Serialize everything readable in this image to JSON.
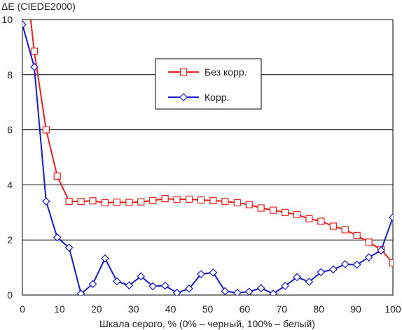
{
  "chart_data": {
    "type": "line",
    "title": "",
    "ylabel": "ΔE (CIEDE2000)",
    "xlabel": "Шкала серого, % (0% – черный, 100% – белый)",
    "xlim": [
      0,
      100
    ],
    "ylim": [
      0,
      10
    ],
    "xticks": [
      0,
      10,
      20,
      30,
      40,
      50,
      60,
      70,
      80,
      90,
      100
    ],
    "yticks": [
      0,
      2,
      4,
      6,
      8,
      10
    ],
    "grid": "horizontal",
    "legend_position": "upper-center",
    "series": [
      {
        "name": "Без корр.",
        "color": "#e8211c",
        "marker": "square",
        "points": [
          [
            1.9,
            10.4
          ],
          [
            3.2,
            8.85
          ],
          [
            6.4,
            6.0
          ],
          [
            9.4,
            4.32
          ],
          [
            12.6,
            3.4
          ],
          [
            15.8,
            3.4
          ],
          [
            19.0,
            3.42
          ],
          [
            22.3,
            3.35
          ],
          [
            25.5,
            3.37
          ],
          [
            28.8,
            3.36
          ],
          [
            32.0,
            3.38
          ],
          [
            35.2,
            3.43
          ],
          [
            38.5,
            3.5
          ],
          [
            41.7,
            3.47
          ],
          [
            45.0,
            3.48
          ],
          [
            48.2,
            3.45
          ],
          [
            51.5,
            3.43
          ],
          [
            54.7,
            3.4
          ],
          [
            58.0,
            3.35
          ],
          [
            61.2,
            3.28
          ],
          [
            64.4,
            3.16
          ],
          [
            67.7,
            3.08
          ],
          [
            70.9,
            3.0
          ],
          [
            74.1,
            2.92
          ],
          [
            77.4,
            2.77
          ],
          [
            80.6,
            2.68
          ],
          [
            83.9,
            2.5
          ],
          [
            87.1,
            2.37
          ],
          [
            90.3,
            2.16
          ],
          [
            93.5,
            1.92
          ],
          [
            96.8,
            1.65
          ],
          [
            100.0,
            1.17
          ]
        ]
      },
      {
        "name": "Корр.",
        "color": "#1a1acc",
        "marker": "diamond",
        "points": [
          [
            0.0,
            9.82
          ],
          [
            3.2,
            8.28
          ],
          [
            6.4,
            3.4
          ],
          [
            9.4,
            2.09
          ],
          [
            12.6,
            1.72
          ],
          [
            15.8,
            0.05
          ],
          [
            19.0,
            0.4
          ],
          [
            22.3,
            1.33
          ],
          [
            25.5,
            0.5
          ],
          [
            28.8,
            0.35
          ],
          [
            32.0,
            0.68
          ],
          [
            35.2,
            0.32
          ],
          [
            38.5,
            0.34
          ],
          [
            41.7,
            0.08
          ],
          [
            45.0,
            0.23
          ],
          [
            48.2,
            0.76
          ],
          [
            51.5,
            0.82
          ],
          [
            54.7,
            0.14
          ],
          [
            58.0,
            0.08
          ],
          [
            61.2,
            0.12
          ],
          [
            64.4,
            0.25
          ],
          [
            67.7,
            0.05
          ],
          [
            70.9,
            0.33
          ],
          [
            74.1,
            0.65
          ],
          [
            77.4,
            0.48
          ],
          [
            80.6,
            0.83
          ],
          [
            83.9,
            0.93
          ],
          [
            87.1,
            1.12
          ],
          [
            90.3,
            1.1
          ],
          [
            93.5,
            1.37
          ],
          [
            96.8,
            1.62
          ],
          [
            100.0,
            2.82
          ]
        ]
      }
    ]
  }
}
